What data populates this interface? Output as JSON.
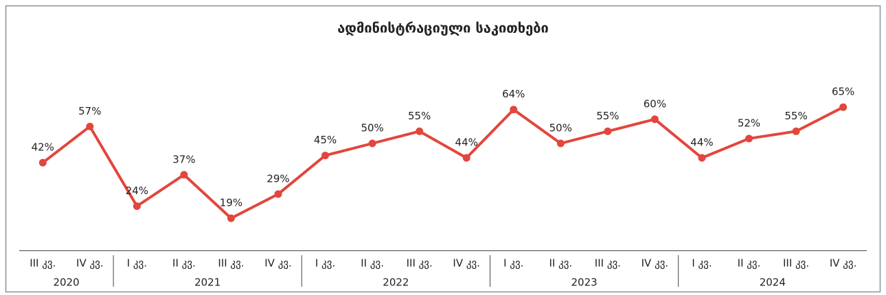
{
  "chart_data": {
    "type": "line",
    "title": "ადმინისტრაციული საკითხები",
    "groups": [
      {
        "name": "2020",
        "categories": [
          "III კვ.",
          "IV კვ."
        ]
      },
      {
        "name": "2021",
        "categories": [
          "I კვ.",
          "II კვ.",
          "III კვ.",
          "IV კვ."
        ]
      },
      {
        "name": "2022",
        "categories": [
          "I კვ.",
          "II კვ.",
          "III კვ.",
          "IV კვ."
        ]
      },
      {
        "name": "2023",
        "categories": [
          "I კვ.",
          "II კვ.",
          "III კვ.",
          "IV კვ."
        ]
      },
      {
        "name": "2024",
        "categories": [
          "I კვ.",
          "II კვ.",
          "III კვ.",
          "IV კვ."
        ]
      }
    ],
    "values": [
      42,
      57,
      24,
      37,
      19,
      29,
      45,
      50,
      55,
      44,
      64,
      50,
      55,
      60,
      44,
      52,
      55,
      65
    ],
    "value_labels": [
      "42%",
      "57%",
      "24%",
      "37%",
      "19%",
      "29%",
      "45%",
      "50%",
      "55%",
      "44%",
      "64%",
      "50%",
      "55%",
      "60%",
      "44%",
      "52%",
      "55%",
      "65%"
    ],
    "color": "#e2463c"
  }
}
